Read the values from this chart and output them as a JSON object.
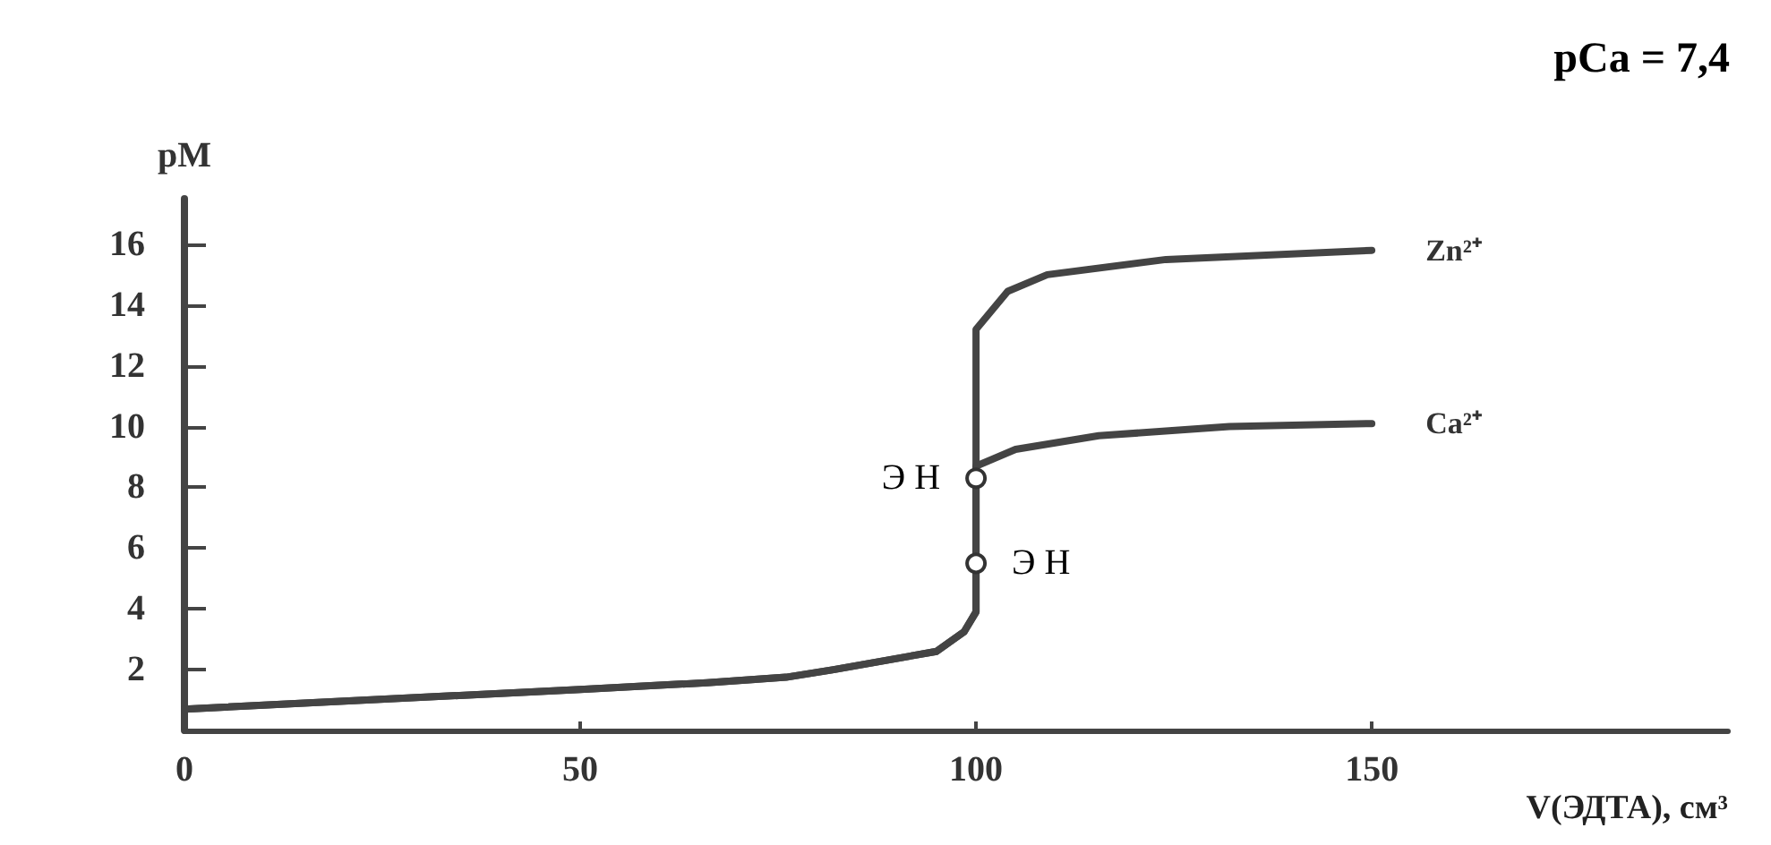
{
  "chart_data": {
    "type": "line",
    "title": "pCa = 7,4",
    "xlabel": "V(ЭДТА), см³",
    "ylabel": "pM",
    "xlim": [
      0,
      195
    ],
    "xticks": [
      0,
      50,
      100,
      150
    ],
    "ylim": [
      0,
      17.5
    ],
    "yticks": [
      2,
      4,
      6,
      8,
      10,
      12,
      14,
      16
    ],
    "grid": false,
    "legend": false,
    "series": [
      {
        "name": "Zn²⁺",
        "color": "#444444",
        "x": [
          0,
          50,
          66,
          76,
          82,
          95,
          98.5,
          100,
          100,
          104,
          109,
          124,
          150
        ],
        "values": [
          0.7,
          1.35,
          1.57,
          1.75,
          2.0,
          2.6,
          3.25,
          3.9,
          13.2,
          14.45,
          15.0,
          15.5,
          15.8
        ]
      },
      {
        "name": "Ca²⁺",
        "color": "#444444",
        "x": [
          0,
          50,
          66,
          76,
          82,
          95,
          98.5,
          100,
          100,
          105,
          115.5,
          132,
          150
        ],
        "values": [
          0.7,
          1.35,
          1.57,
          1.75,
          2.0,
          2.6,
          3.25,
          3.9,
          8.7,
          9.25,
          9.7,
          10.0,
          10.1
        ]
      }
    ],
    "annotations": [
      {
        "text": "Э Н",
        "x": 100,
        "y": 8.3
      },
      {
        "text": "Э Н",
        "x": 100,
        "y": 5.5
      }
    ]
  }
}
